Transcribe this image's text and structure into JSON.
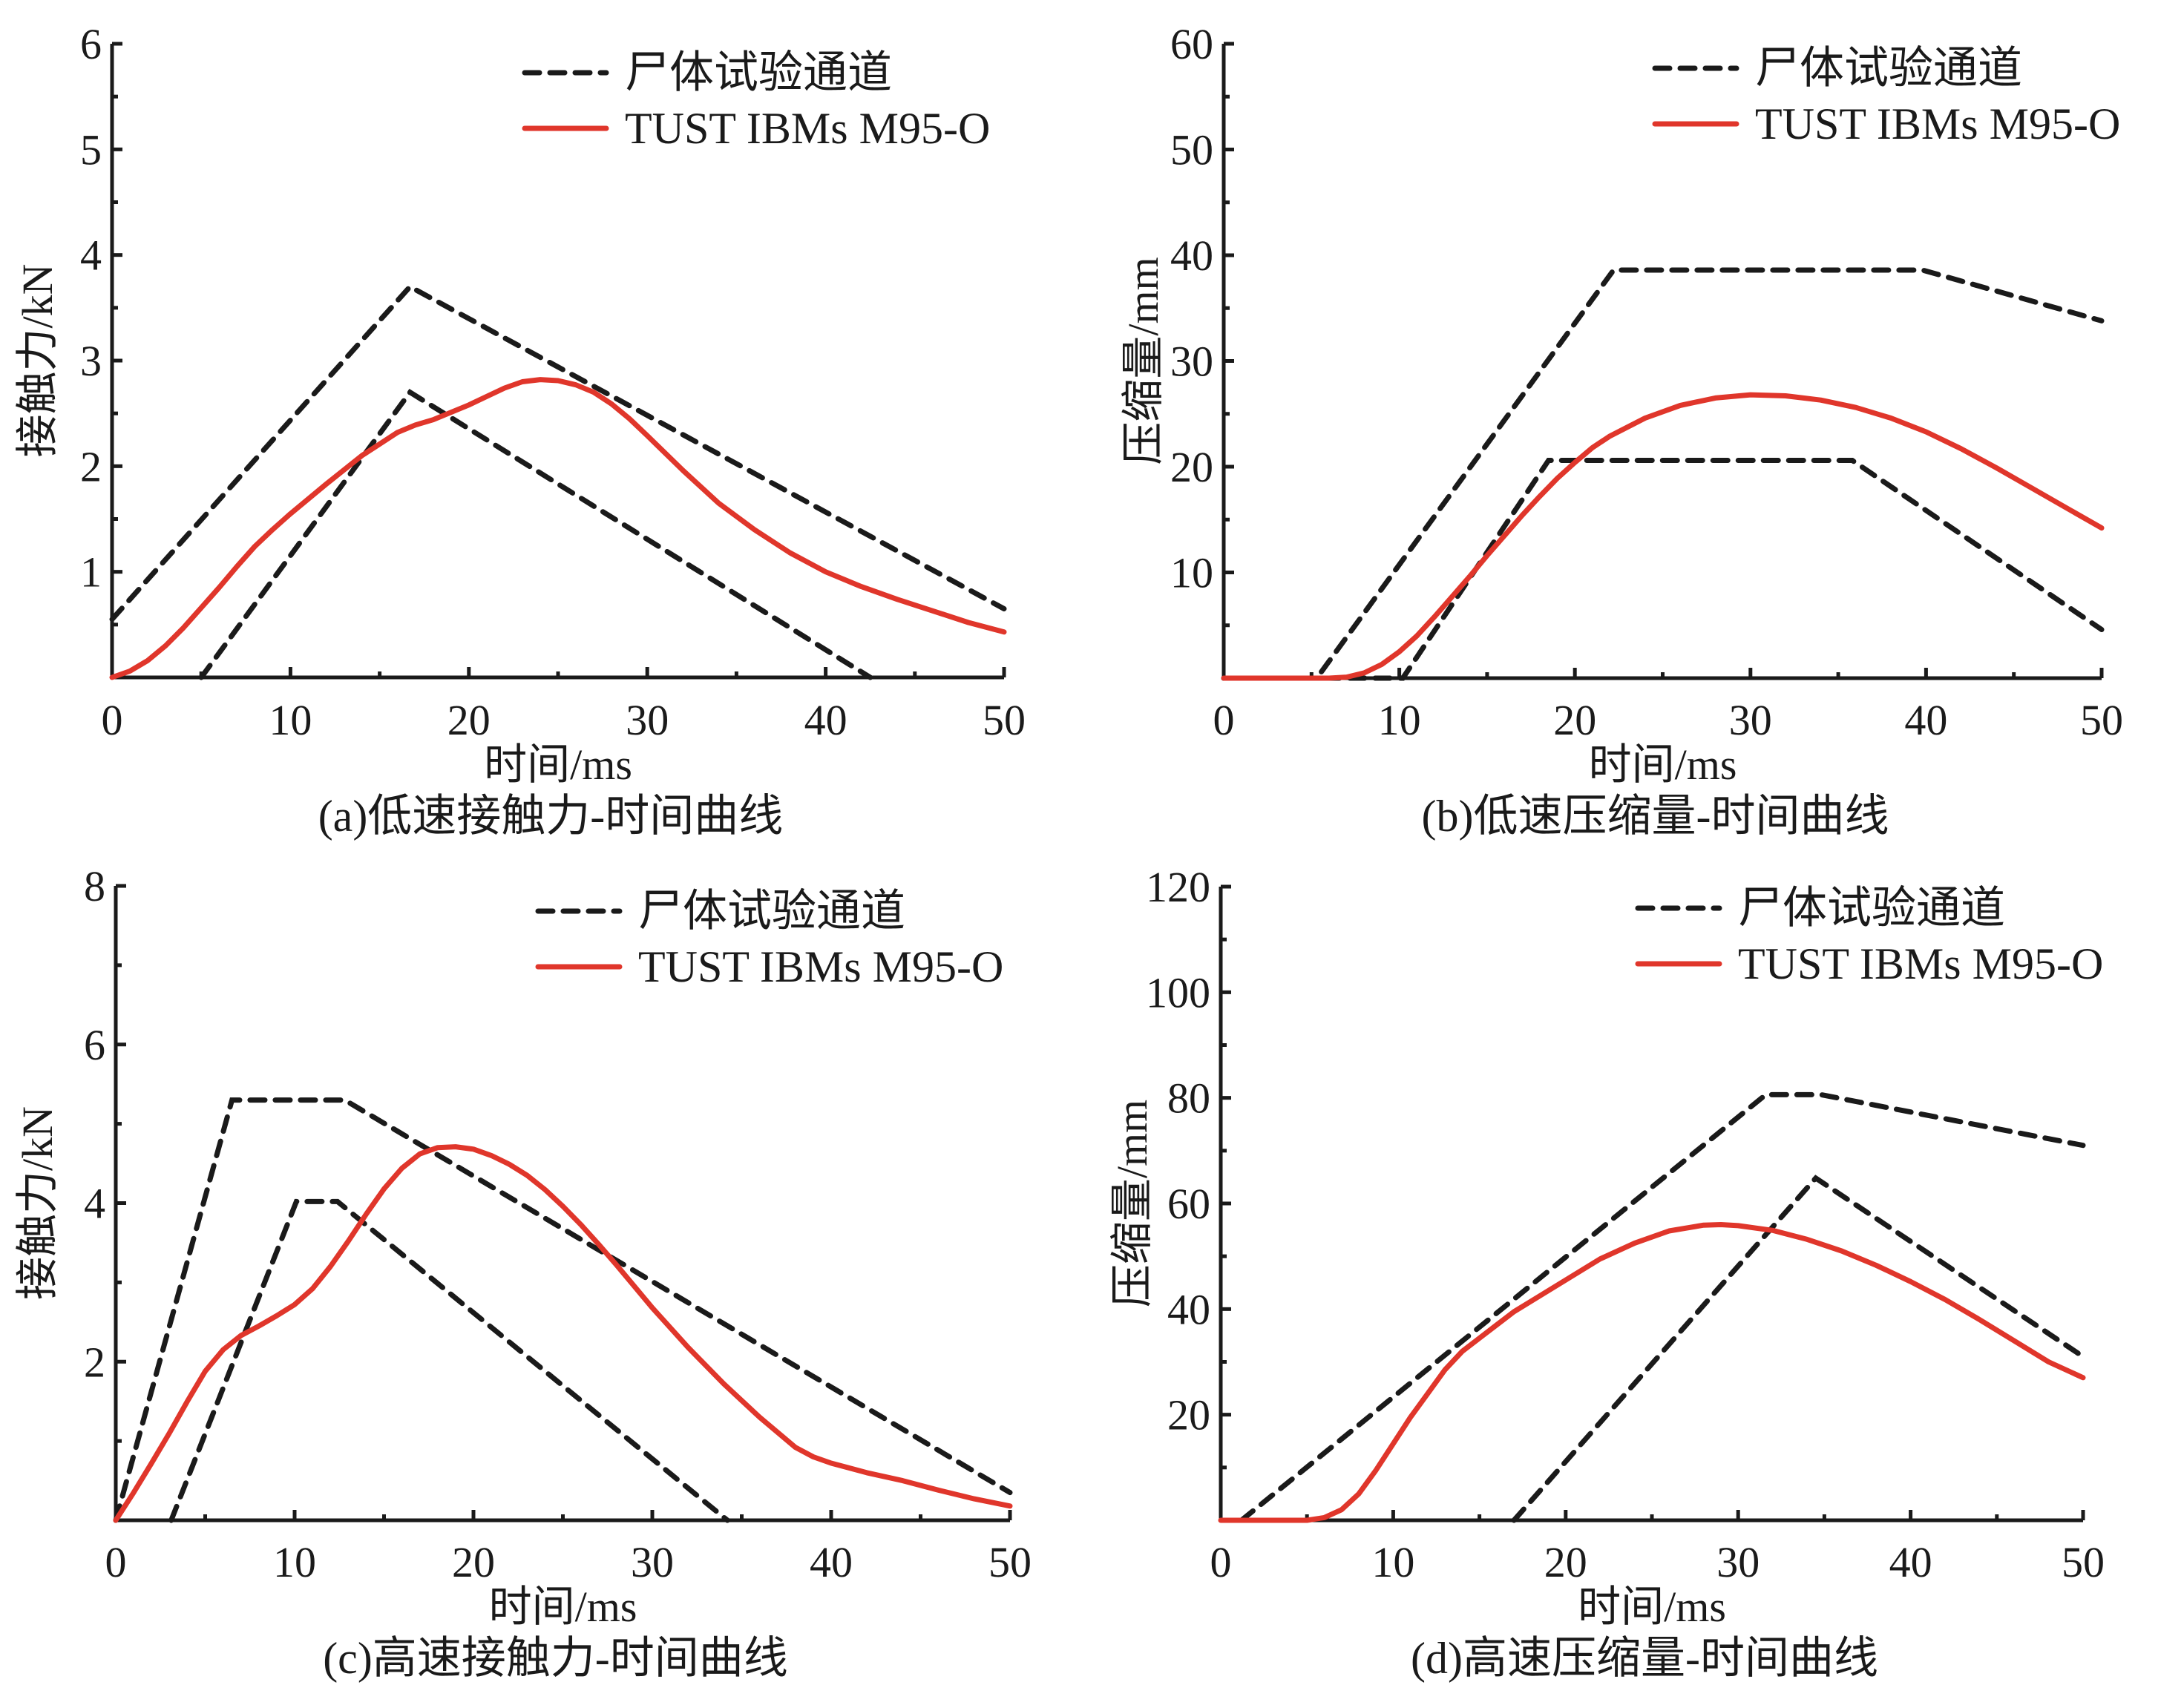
{
  "legend": {
    "corridor_label": "尸体试验通道",
    "sim_label": "TUST IBMs M95-O"
  },
  "colors": {
    "corridor": "#1a1a1a",
    "sim": "#e0362b"
  },
  "chart_data": [
    {
      "id": "a",
      "type": "line",
      "caption": "(a)低速接触力-时间曲线",
      "xlabel": "时间/ms",
      "ylabel": "接触力/kN",
      "xlim": [
        0,
        50
      ],
      "ylim": [
        0,
        6
      ],
      "xticks": [
        0,
        10,
        20,
        30,
        40,
        50
      ],
      "yticks": [
        1,
        2,
        3,
        4,
        5,
        6
      ],
      "yticklabels": [
        "1",
        "2",
        "3",
        "4",
        "5",
        "6"
      ],
      "grid": false,
      "legend_position": "top-right",
      "series": [
        {
          "name": "尸体试验通道 (upper)",
          "style": "dashed",
          "x": [
            0,
            16.7,
            50
          ],
          "y": [
            0.55,
            3.7,
            0.65
          ]
        },
        {
          "name": "尸体试验通道 (lower)",
          "style": "dashed",
          "x": [
            5.0,
            16.7,
            42.5
          ],
          "y": [
            0,
            2.7,
            0
          ]
        },
        {
          "name": "TUST IBMs M95-O",
          "style": "solid",
          "x": [
            0,
            1,
            2,
            3,
            4,
            5,
            6,
            7,
            8,
            9,
            10,
            12,
            14,
            16,
            17,
            18,
            19,
            20,
            21,
            22,
            23,
            24,
            25,
            26,
            27,
            28,
            29,
            30,
            32,
            34,
            36,
            38,
            40,
            42,
            44,
            46,
            48,
            50
          ],
          "y": [
            0,
            0.06,
            0.16,
            0.3,
            0.47,
            0.66,
            0.85,
            1.05,
            1.24,
            1.4,
            1.55,
            1.83,
            2.1,
            2.32,
            2.39,
            2.44,
            2.51,
            2.58,
            2.66,
            2.74,
            2.8,
            2.82,
            2.81,
            2.77,
            2.7,
            2.59,
            2.45,
            2.29,
            1.96,
            1.65,
            1.4,
            1.18,
            1.0,
            0.86,
            0.74,
            0.63,
            0.52,
            0.43
          ]
        }
      ]
    },
    {
      "id": "b",
      "type": "line",
      "caption": "(b)低速压缩量-时间曲线",
      "xlabel": "时间/ms",
      "ylabel": "压缩量/mm",
      "xlim": [
        0,
        50
      ],
      "ylim": [
        0,
        60
      ],
      "xticks": [
        0,
        10,
        20,
        30,
        40,
        50
      ],
      "yticks": [
        10,
        20,
        30,
        40,
        50,
        60
      ],
      "yticklabels": [
        "10",
        "20",
        "30",
        "40",
        "50",
        "60"
      ],
      "grid": false,
      "legend_position": "top-right",
      "series": [
        {
          "name": "尸体试验通道 (upper)",
          "style": "dashed",
          "x": [
            0,
            5.3,
            22.2,
            39.8,
            50
          ],
          "y": [
            0,
            0,
            38.6,
            38.6,
            33.8
          ]
        },
        {
          "name": "尸体试验通道 (lower)",
          "style": "dashed",
          "x": [
            0,
            10.2,
            18.5,
            35.8,
            50
          ],
          "y": [
            0,
            0,
            20.6,
            20.6,
            4.6
          ]
        },
        {
          "name": "TUST IBMs M95-O",
          "style": "solid",
          "x": [
            0,
            6,
            7,
            8,
            9,
            10,
            11,
            12,
            13,
            14,
            15,
            16,
            17,
            18,
            19,
            20,
            21,
            22,
            24,
            26,
            28,
            30,
            32,
            34,
            36,
            38,
            40,
            42,
            44,
            46,
            48,
            50
          ],
          "y": [
            0,
            0,
            0.1,
            0.5,
            1.3,
            2.5,
            4.0,
            5.8,
            7.7,
            9.6,
            11.6,
            13.5,
            15.4,
            17.2,
            18.9,
            20.4,
            21.8,
            22.9,
            24.6,
            25.8,
            26.5,
            26.8,
            26.7,
            26.3,
            25.6,
            24.6,
            23.3,
            21.7,
            19.9,
            18.0,
            16.1,
            14.2
          ]
        }
      ]
    },
    {
      "id": "c",
      "type": "line",
      "caption": "(c)高速接触力-时间曲线",
      "xlabel": "时间/ms",
      "ylabel": "接触力/kN",
      "xlim": [
        0,
        50
      ],
      "ylim": [
        0,
        8
      ],
      "xticks": [
        0,
        10,
        20,
        30,
        40,
        50
      ],
      "yticks": [
        2,
        4,
        6,
        8
      ],
      "yticklabels": [
        "2",
        "4",
        "6",
        "8"
      ],
      "minor_yticks": [
        1,
        3,
        5,
        7
      ],
      "grid": false,
      "legend_position": "top-right",
      "series": [
        {
          "name": "尸体试验通道 (upper)",
          "style": "dashed",
          "x": [
            0,
            6.5,
            12.8,
            50
          ],
          "y": [
            0,
            5.3,
            5.3,
            0.35
          ]
        },
        {
          "name": "尸体试验通道 (lower)",
          "style": "dashed",
          "x": [
            3.1,
            10.1,
            12.4,
            34.2
          ],
          "y": [
            0,
            4.02,
            4.02,
            0
          ]
        },
        {
          "name": "TUST IBMs M95-O",
          "style": "solid",
          "x": [
            0,
            1,
            2,
            3,
            4,
            5,
            6,
            7,
            8,
            9,
            10,
            11,
            12,
            13,
            14,
            15,
            16,
            17,
            18,
            19,
            20,
            21,
            22,
            23,
            24,
            25,
            26,
            27,
            28,
            29,
            30,
            32,
            34,
            36,
            38,
            39,
            40,
            42,
            44,
            46,
            48,
            50
          ],
          "y": [
            0,
            0.35,
            0.72,
            1.1,
            1.5,
            1.88,
            2.15,
            2.33,
            2.45,
            2.58,
            2.72,
            2.92,
            3.2,
            3.52,
            3.86,
            4.18,
            4.44,
            4.62,
            4.7,
            4.71,
            4.68,
            4.6,
            4.49,
            4.35,
            4.17,
            3.96,
            3.73,
            3.48,
            3.22,
            2.95,
            2.68,
            2.18,
            1.72,
            1.3,
            0.92,
            0.8,
            0.72,
            0.6,
            0.5,
            0.38,
            0.27,
            0.18
          ]
        }
      ]
    },
    {
      "id": "d",
      "type": "line",
      "caption": "(d)高速压缩量-时间曲线",
      "xlabel": "时间/ms",
      "ylabel": "压缩量/mm",
      "xlim": [
        0,
        50
      ],
      "ylim": [
        0,
        120
      ],
      "xticks": [
        0,
        10,
        20,
        30,
        40,
        50
      ],
      "yticks": [
        20,
        40,
        60,
        80,
        100,
        120
      ],
      "yticklabels": [
        "20",
        "40",
        "60",
        "80",
        "100",
        "120"
      ],
      "grid": false,
      "legend_position": "top-right",
      "series": [
        {
          "name": "尸体试验通道 (upper)",
          "style": "dashed",
          "x": [
            1.2,
            31.6,
            34.8,
            50
          ],
          "y": [
            0,
            80.6,
            80.6,
            71
          ]
        },
        {
          "name": "尸体试验通道 (lower)",
          "style": "dashed",
          "x": [
            17.0,
            34.5,
            50
          ],
          "y": [
            0,
            64.8,
            31
          ]
        },
        {
          "name": "TUST IBMs M95-O",
          "style": "solid",
          "x": [
            0,
            5,
            6,
            7,
            8,
            9,
            10,
            11,
            12,
            13,
            14,
            15,
            16,
            17,
            18,
            20,
            22,
            24,
            26,
            28,
            29,
            30,
            32,
            34,
            36,
            38,
            40,
            42,
            44,
            46,
            48,
            50
          ],
          "y": [
            0,
            0,
            0.5,
            2,
            5,
            9.5,
            14.5,
            19.5,
            24,
            28.5,
            32,
            34.5,
            37,
            39.5,
            41.5,
            45.5,
            49.5,
            52.5,
            54.8,
            55.9,
            56,
            55.8,
            54.9,
            53.2,
            51,
            48.3,
            45.2,
            41.8,
            38,
            34,
            30,
            27
          ]
        }
      ]
    }
  ]
}
